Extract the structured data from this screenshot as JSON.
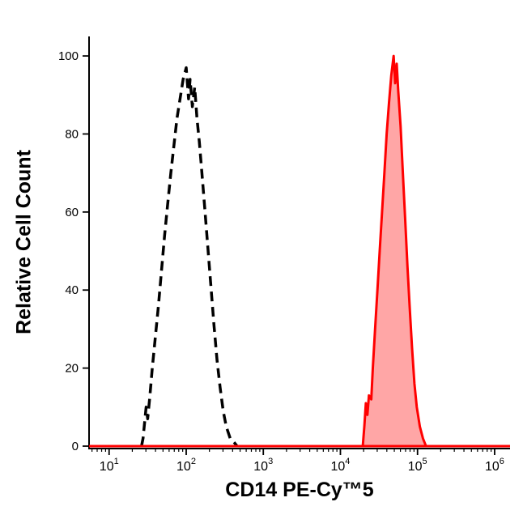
{
  "chart_data": {
    "type": "area",
    "title": "",
    "xlabel": "CD14 PE-Cy™5",
    "ylabel": "Relative Cell Count",
    "x_scale": "log10",
    "grid": "off",
    "legend": "none",
    "x_axis": {
      "range_log10": [
        0.74,
        6.2
      ],
      "ticks": [
        {
          "value": 10,
          "base": "10",
          "exp": "1"
        },
        {
          "value": 100,
          "base": "10",
          "exp": "2"
        },
        {
          "value": 1000,
          "base": "10",
          "exp": "3"
        },
        {
          "value": 10000,
          "base": "10",
          "exp": "4"
        },
        {
          "value": 100000,
          "base": "10",
          "exp": "5"
        },
        {
          "value": 1000000,
          "base": "10",
          "exp": "6"
        }
      ],
      "minor_tick_multiples": [
        2,
        3,
        4,
        5,
        6,
        7,
        8,
        9
      ]
    },
    "y_axis": {
      "range": [
        0,
        105
      ],
      "ticks": [
        {
          "value": 0,
          "label": "0"
        },
        {
          "value": 20,
          "label": "20"
        },
        {
          "value": 40,
          "label": "40"
        },
        {
          "value": 60,
          "label": "60"
        },
        {
          "value": 80,
          "label": "80"
        },
        {
          "value": 100,
          "label": "100"
        }
      ]
    },
    "baseline": {
      "y": 0,
      "color": "#ff0000",
      "width": 3
    },
    "series": [
      {
        "name": "black-dashed-outline-histogram",
        "line_style": "dashed",
        "color": "#000000",
        "fill": "none",
        "line_width": 3.5,
        "peak": {
          "x_log10": 2.0,
          "y": 97
        },
        "points_log10x_y": [
          [
            1.42,
            0
          ],
          [
            1.44,
            2
          ],
          [
            1.46,
            6
          ],
          [
            1.48,
            10
          ],
          [
            1.5,
            7
          ],
          [
            1.53,
            13
          ],
          [
            1.56,
            20
          ],
          [
            1.6,
            28
          ],
          [
            1.64,
            36
          ],
          [
            1.68,
            45
          ],
          [
            1.72,
            54
          ],
          [
            1.76,
            62
          ],
          [
            1.8,
            70
          ],
          [
            1.84,
            77
          ],
          [
            1.88,
            84
          ],
          [
            1.92,
            89
          ],
          [
            1.96,
            94
          ],
          [
            2.0,
            97
          ],
          [
            2.03,
            89
          ],
          [
            2.05,
            94
          ],
          [
            2.08,
            87
          ],
          [
            2.11,
            92
          ],
          [
            2.14,
            84
          ],
          [
            2.17,
            78
          ],
          [
            2.2,
            71
          ],
          [
            2.24,
            61
          ],
          [
            2.28,
            51
          ],
          [
            2.32,
            41
          ],
          [
            2.36,
            31
          ],
          [
            2.4,
            22
          ],
          [
            2.44,
            15
          ],
          [
            2.48,
            9
          ],
          [
            2.52,
            5
          ],
          [
            2.57,
            2
          ],
          [
            2.62,
            1
          ],
          [
            2.66,
            0
          ]
        ]
      },
      {
        "name": "red-filled-histogram",
        "line_style": "solid",
        "color": "#ff0000",
        "fill": "rgba(255,0,0,0.35)",
        "line_width": 3,
        "peak": {
          "x_log10": 4.69,
          "y": 100
        },
        "points_log10x_y": [
          [
            4.29,
            0
          ],
          [
            4.31,
            5
          ],
          [
            4.33,
            11
          ],
          [
            4.35,
            8
          ],
          [
            4.37,
            13
          ],
          [
            4.4,
            12
          ],
          [
            4.42,
            20
          ],
          [
            4.45,
            30
          ],
          [
            4.48,
            40
          ],
          [
            4.51,
            50
          ],
          [
            4.54,
            60
          ],
          [
            4.57,
            70
          ],
          [
            4.6,
            80
          ],
          [
            4.63,
            88
          ],
          [
            4.66,
            95
          ],
          [
            4.69,
            100
          ],
          [
            4.71,
            93
          ],
          [
            4.73,
            98
          ],
          [
            4.75,
            91
          ],
          [
            4.78,
            82
          ],
          [
            4.81,
            70
          ],
          [
            4.84,
            58
          ],
          [
            4.87,
            46
          ],
          [
            4.9,
            35
          ],
          [
            4.93,
            25
          ],
          [
            4.96,
            16
          ],
          [
            4.99,
            10
          ],
          [
            5.03,
            5
          ],
          [
            5.07,
            2
          ],
          [
            5.11,
            0
          ]
        ]
      }
    ]
  }
}
